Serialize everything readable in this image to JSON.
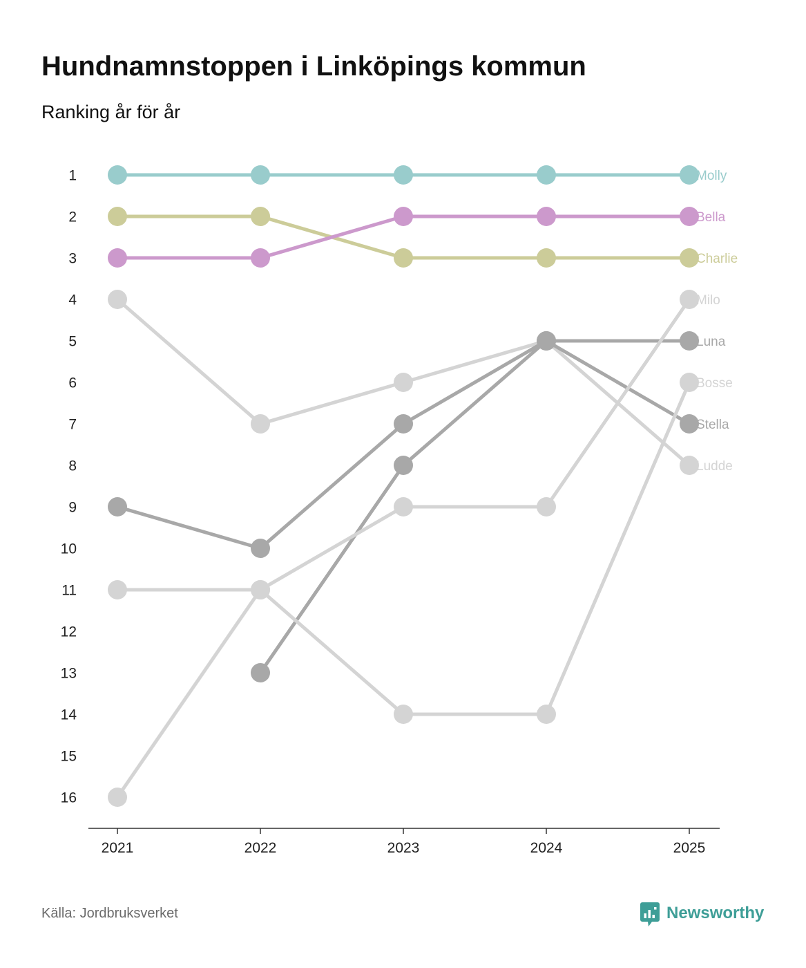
{
  "source": "Källa: Jordbruksverket",
  "brand": {
    "name": "Newsworthy",
    "color": "#3E9E97",
    "icon": "newsworthy-logo-icon"
  },
  "chart_data": {
    "type": "line",
    "subtype": "bump",
    "title": "Hundnamnstoppen i Linköpings kommun",
    "subtitle": "Ranking år för år",
    "xlabel": "",
    "ylabel": "",
    "categories": [
      "2021",
      "2022",
      "2023",
      "2024",
      "2025"
    ],
    "y_ticks": [
      1,
      2,
      3,
      4,
      5,
      6,
      7,
      8,
      9,
      10,
      11,
      12,
      13,
      14,
      15,
      16
    ],
    "ylim": [
      1,
      16
    ],
    "y_inverted": true,
    "grid": false,
    "series": [
      {
        "name": "Molly",
        "color": "#99CCCC",
        "values": [
          1,
          1,
          1,
          1,
          1
        ]
      },
      {
        "name": "Bella",
        "color": "#CC99CC",
        "values": [
          3,
          3,
          2,
          2,
          2
        ]
      },
      {
        "name": "Charlie",
        "color": "#CCCC99",
        "values": [
          2,
          2,
          3,
          3,
          3
        ]
      },
      {
        "name": "Milo",
        "color": "#D4D4D4",
        "values": [
          16,
          11,
          9,
          9,
          4
        ]
      },
      {
        "name": "Luna",
        "color": "#A8A8A8",
        "values": [
          9,
          10,
          7,
          5,
          5
        ]
      },
      {
        "name": "Bosse",
        "color": "#D4D4D4",
        "values": [
          11,
          11,
          14,
          14,
          6
        ]
      },
      {
        "name": "Stella",
        "color": "#A8A8A8",
        "values": [
          null,
          13,
          8,
          5,
          7
        ]
      },
      {
        "name": "Ludde",
        "color": "#D4D4D4",
        "values": [
          4,
          7,
          6,
          5,
          8
        ]
      }
    ]
  }
}
